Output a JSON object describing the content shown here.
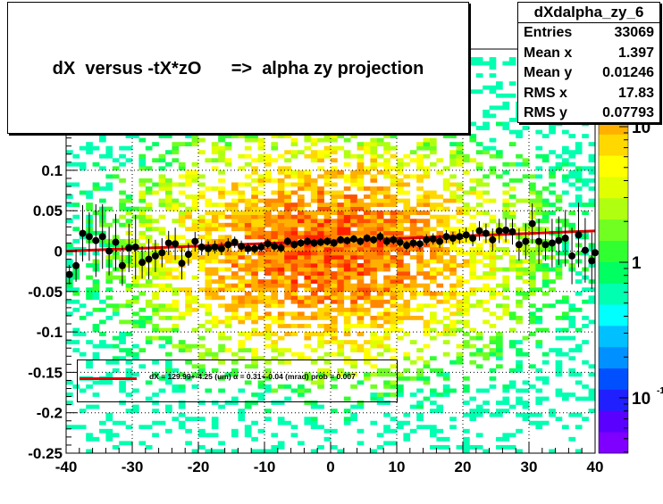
{
  "title": "dX  versus -tX*zO      =>  alpha zy projection",
  "stats": {
    "name": "dXdalpha_zy_6",
    "rows": [
      {
        "label": "Entries",
        "value": "33069"
      },
      {
        "label": "Mean x",
        "value": "1.397"
      },
      {
        "label": "Mean y",
        "value": "0.01246"
      },
      {
        "label": "RMS x",
        "value": "17.83"
      },
      {
        "label": "RMS y",
        "value": "0.07793"
      }
    ]
  },
  "legend": {
    "text": "dX = 129.99+-4.25 (um) α =   0.31+-0.04 (mrad) prob = 0.007",
    "line_color": "#e00000"
  },
  "chart_data": {
    "type": "heatmap",
    "title": "dX  versus -tX*zO      =>  alpha zy projection",
    "xlabel": "",
    "ylabel": "",
    "xlim": [
      -40,
      40
    ],
    "ylim": [
      -0.25,
      0.25
    ],
    "x_ticks": [
      -40,
      -30,
      -20,
      -10,
      0,
      10,
      20,
      30,
      40
    ],
    "x_tick_labels": [
      "-40",
      "-30",
      "-20",
      "-10",
      "0",
      "10",
      "20",
      "30",
      "40"
    ],
    "y_ticks": [
      -0.25,
      -0.2,
      -0.15,
      -0.1,
      -0.05,
      0,
      0.05,
      0.1
    ],
    "y_tick_labels": [
      "-0.25",
      "-0.2",
      "-0.15",
      "-0.1",
      "-0.05",
      "0",
      "0.05",
      "0.1"
    ],
    "z_scale": "log",
    "z_tick_labels": [
      "10",
      "1",
      "10"
    ],
    "z_tick_suffix": "-1",
    "grid": true,
    "palette": [
      "#7f00ff",
      "#5a00ff",
      "#2020ff",
      "#0050ff",
      "#0090ff",
      "#00c0ff",
      "#00ffff",
      "#00ffb0",
      "#00ff60",
      "#30ff30",
      "#70ff20",
      "#b0ff10",
      "#e0ff00",
      "#ffff00",
      "#ffd800",
      "#ffb000",
      "#ff8800",
      "#ff5000",
      "#ff2000"
    ],
    "profile_points": [
      {
        "x": -39.5,
        "y": -0.029,
        "err": 0.012
      },
      {
        "x": -38.5,
        "y": -0.018,
        "err": 0.02
      },
      {
        "x": -37.5,
        "y": 0.022,
        "err": 0.035
      },
      {
        "x": -36.5,
        "y": 0.018,
        "err": 0.03
      },
      {
        "x": -35.5,
        "y": 0.013,
        "err": 0.045
      },
      {
        "x": -34.5,
        "y": 0.018,
        "err": 0.04
      },
      {
        "x": -33.5,
        "y": 0.0,
        "err": 0.03
      },
      {
        "x": -32.5,
        "y": 0.011,
        "err": 0.035
      },
      {
        "x": -31.5,
        "y": -0.018,
        "err": 0.025
      },
      {
        "x": -30.5,
        "y": 0.004,
        "err": 0.03
      },
      {
        "x": -29.5,
        "y": 0.005,
        "err": 0.04
      },
      {
        "x": -28.5,
        "y": -0.014,
        "err": 0.02
      },
      {
        "x": -27.5,
        "y": -0.01,
        "err": 0.025
      },
      {
        "x": -26.5,
        "y": -0.006,
        "err": 0.02
      },
      {
        "x": -25.5,
        "y": -0.002,
        "err": 0.018
      },
      {
        "x": -24.5,
        "y": 0.01,
        "err": 0.015
      },
      {
        "x": -23.5,
        "y": 0.009,
        "err": 0.02
      },
      {
        "x": -22.5,
        "y": -0.015,
        "err": 0.02
      },
      {
        "x": -21.5,
        "y": -0.004,
        "err": 0.014
      },
      {
        "x": -20.5,
        "y": 0.012,
        "err": 0.012
      },
      {
        "x": -19.5,
        "y": 0.005,
        "err": 0.01
      },
      {
        "x": -18.5,
        "y": 0.003,
        "err": 0.009
      },
      {
        "x": -17.5,
        "y": 0.005,
        "err": 0.008
      },
      {
        "x": -16.5,
        "y": 0.003,
        "err": 0.008
      },
      {
        "x": -15.5,
        "y": 0.008,
        "err": 0.008
      },
      {
        "x": -14.5,
        "y": 0.011,
        "err": 0.007
      },
      {
        "x": -13.5,
        "y": 0.006,
        "err": 0.007
      },
      {
        "x": -12.5,
        "y": 0.003,
        "err": 0.007
      },
      {
        "x": -11.5,
        "y": 0.003,
        "err": 0.006
      },
      {
        "x": -10.5,
        "y": 0.005,
        "err": 0.006
      },
      {
        "x": -9.5,
        "y": 0.009,
        "err": 0.006
      },
      {
        "x": -8.5,
        "y": 0.006,
        "err": 0.006
      },
      {
        "x": -7.5,
        "y": 0.004,
        "err": 0.006
      },
      {
        "x": -6.5,
        "y": 0.012,
        "err": 0.005
      },
      {
        "x": -5.5,
        "y": 0.008,
        "err": 0.005
      },
      {
        "x": -4.5,
        "y": 0.01,
        "err": 0.005
      },
      {
        "x": -3.5,
        "y": 0.012,
        "err": 0.005
      },
      {
        "x": -2.5,
        "y": 0.01,
        "err": 0.005
      },
      {
        "x": -1.5,
        "y": 0.011,
        "err": 0.005
      },
      {
        "x": -0.5,
        "y": 0.012,
        "err": 0.005
      },
      {
        "x": 0.5,
        "y": 0.01,
        "err": 0.005
      },
      {
        "x": 1.5,
        "y": 0.014,
        "err": 0.005
      },
      {
        "x": 2.5,
        "y": 0.013,
        "err": 0.005
      },
      {
        "x": 3.5,
        "y": 0.015,
        "err": 0.005
      },
      {
        "x": 4.5,
        "y": 0.012,
        "err": 0.005
      },
      {
        "x": 5.5,
        "y": 0.016,
        "err": 0.005
      },
      {
        "x": 6.5,
        "y": 0.014,
        "err": 0.005
      },
      {
        "x": 7.5,
        "y": 0.018,
        "err": 0.006
      },
      {
        "x": 8.5,
        "y": 0.012,
        "err": 0.006
      },
      {
        "x": 9.5,
        "y": 0.014,
        "err": 0.006
      },
      {
        "x": 10.5,
        "y": 0.011,
        "err": 0.006
      },
      {
        "x": 11.5,
        "y": 0.007,
        "err": 0.006
      },
      {
        "x": 12.5,
        "y": 0.01,
        "err": 0.006
      },
      {
        "x": 13.5,
        "y": 0.009,
        "err": 0.007
      },
      {
        "x": 14.5,
        "y": 0.014,
        "err": 0.007
      },
      {
        "x": 15.5,
        "y": 0.015,
        "err": 0.007
      },
      {
        "x": 16.5,
        "y": 0.012,
        "err": 0.008
      },
      {
        "x": 17.5,
        "y": 0.018,
        "err": 0.008
      },
      {
        "x": 18.5,
        "y": 0.016,
        "err": 0.008
      },
      {
        "x": 19.5,
        "y": 0.018,
        "err": 0.009
      },
      {
        "x": 20.5,
        "y": 0.02,
        "err": 0.009
      },
      {
        "x": 21.5,
        "y": 0.016,
        "err": 0.01
      },
      {
        "x": 22.5,
        "y": 0.025,
        "err": 0.012
      },
      {
        "x": 23.5,
        "y": 0.022,
        "err": 0.012
      },
      {
        "x": 24.5,
        "y": 0.014,
        "err": 0.014
      },
      {
        "x": 25.5,
        "y": 0.025,
        "err": 0.015
      },
      {
        "x": 26.5,
        "y": 0.026,
        "err": 0.015
      },
      {
        "x": 27.5,
        "y": 0.024,
        "err": 0.016
      },
      {
        "x": 28.5,
        "y": 0.008,
        "err": 0.02
      },
      {
        "x": 29.5,
        "y": 0.012,
        "err": 0.022
      },
      {
        "x": 30.5,
        "y": 0.034,
        "err": 0.025
      },
      {
        "x": 31.5,
        "y": 0.012,
        "err": 0.028
      },
      {
        "x": 32.5,
        "y": 0.008,
        "err": 0.02
      },
      {
        "x": 33.5,
        "y": 0.01,
        "err": 0.03
      },
      {
        "x": 34.5,
        "y": 0.013,
        "err": 0.03
      },
      {
        "x": 35.5,
        "y": 0.016,
        "err": 0.035
      },
      {
        "x": 36.5,
        "y": -0.006,
        "err": 0.035
      },
      {
        "x": 37.5,
        "y": 0.02,
        "err": 0.04
      },
      {
        "x": 38.5,
        "y": 0.001,
        "err": 0.04
      },
      {
        "x": 39.5,
        "y": -0.012,
        "err": 0.035
      },
      {
        "x": 40.0,
        "y": -0.002,
        "err": 0.03
      }
    ],
    "fit_line": {
      "x": [
        -40,
        40
      ],
      "y": [
        0.0,
        0.025
      ]
    }
  }
}
